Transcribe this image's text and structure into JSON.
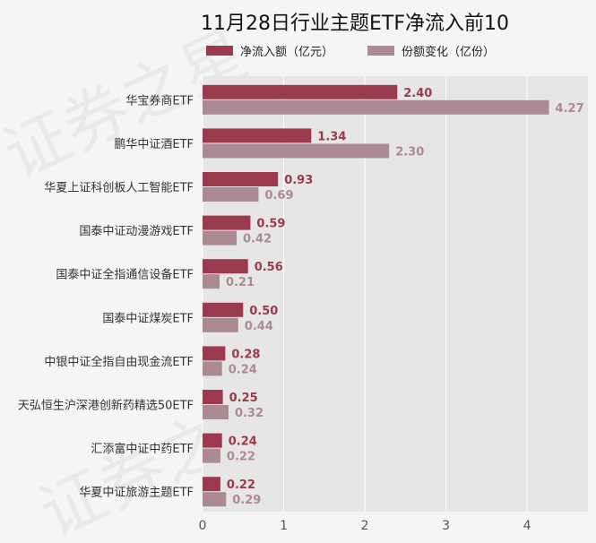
{
  "chart_data": {
    "type": "bar",
    "orientation": "horizontal",
    "title": "11月28日行业主题ETF净流入前10",
    "categories": [
      "华宝券商ETF",
      "鹏华中证酒ETF",
      "华夏上证科创板人工智能ETF",
      "国泰中证动漫游戏ETF",
      "国泰中证全指通信设备ETF",
      "国泰中证煤炭ETF",
      "中银中证全指自由现金流ETF",
      "天弘恒生沪深港创新药精选50ETF",
      "汇添富中证中药ETF",
      "华夏中证旅游主题ETF"
    ],
    "series": [
      {
        "name": "净流入额（亿元）",
        "color": "#9b3a4c",
        "values": [
          2.4,
          1.34,
          0.93,
          0.59,
          0.56,
          0.5,
          0.28,
          0.25,
          0.24,
          0.22
        ],
        "labels": [
          "2.40",
          "1.34",
          "0.93",
          "0.59",
          "0.56",
          "0.50",
          "0.28",
          "0.25",
          "0.24",
          "0.22"
        ]
      },
      {
        "name": "份额变化（亿份）",
        "color": "#ab8a93",
        "values": [
          4.27,
          2.3,
          0.69,
          0.42,
          0.21,
          0.44,
          0.24,
          0.32,
          0.22,
          0.29
        ],
        "labels": [
          "4.27",
          "2.30",
          "0.69",
          "0.42",
          "0.21",
          "0.44",
          "0.24",
          "0.32",
          "0.22",
          "0.29"
        ]
      }
    ],
    "xlim": [
      0,
      4.75
    ],
    "xticks": [
      "0",
      "1",
      "2",
      "3",
      "4"
    ],
    "grid": true,
    "legend_position": "top"
  }
}
